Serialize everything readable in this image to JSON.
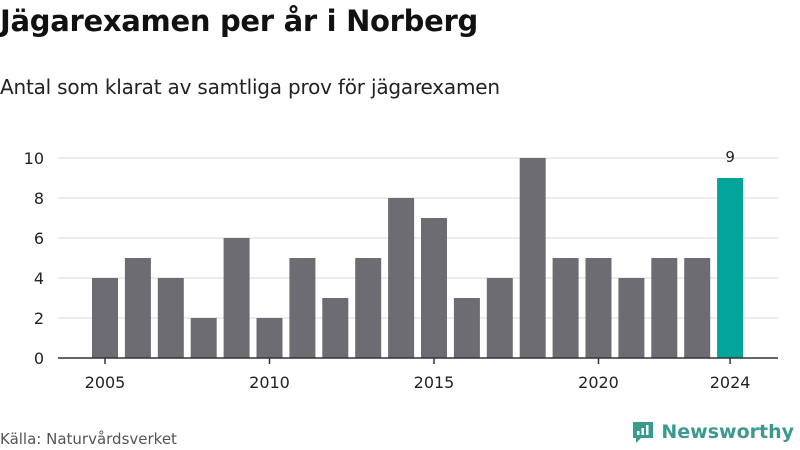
{
  "header": {
    "title": "Jägarexamen per år i Norberg",
    "subtitle": "Antal som klarat av samtliga prov för jägarexamen"
  },
  "footer": {
    "source": "Källa: Naturvårdsverket",
    "brand": "Newsworthy"
  },
  "colors": {
    "bar": "#6d6c72",
    "highlight": "#00a499",
    "grid": "#d8d8d8",
    "axis": "#333333",
    "brand": "#3a9a8f"
  },
  "chart_data": {
    "type": "bar",
    "x": [
      2005,
      2006,
      2007,
      2008,
      2009,
      2010,
      2011,
      2012,
      2013,
      2014,
      2015,
      2016,
      2017,
      2018,
      2019,
      2020,
      2021,
      2022,
      2023,
      2024
    ],
    "values": [
      4,
      5,
      4,
      2,
      6,
      2,
      5,
      3,
      5,
      8,
      7,
      3,
      4,
      10,
      5,
      5,
      4,
      5,
      5,
      9
    ],
    "highlight_index": 19,
    "highlight_label": "9",
    "x_ticks": [
      2005,
      2010,
      2015,
      2020,
      2024
    ],
    "y_ticks": [
      0,
      2,
      4,
      6,
      8,
      10
    ],
    "ylim": [
      0,
      10
    ],
    "grid": true,
    "xlabel": "",
    "ylabel": ""
  }
}
